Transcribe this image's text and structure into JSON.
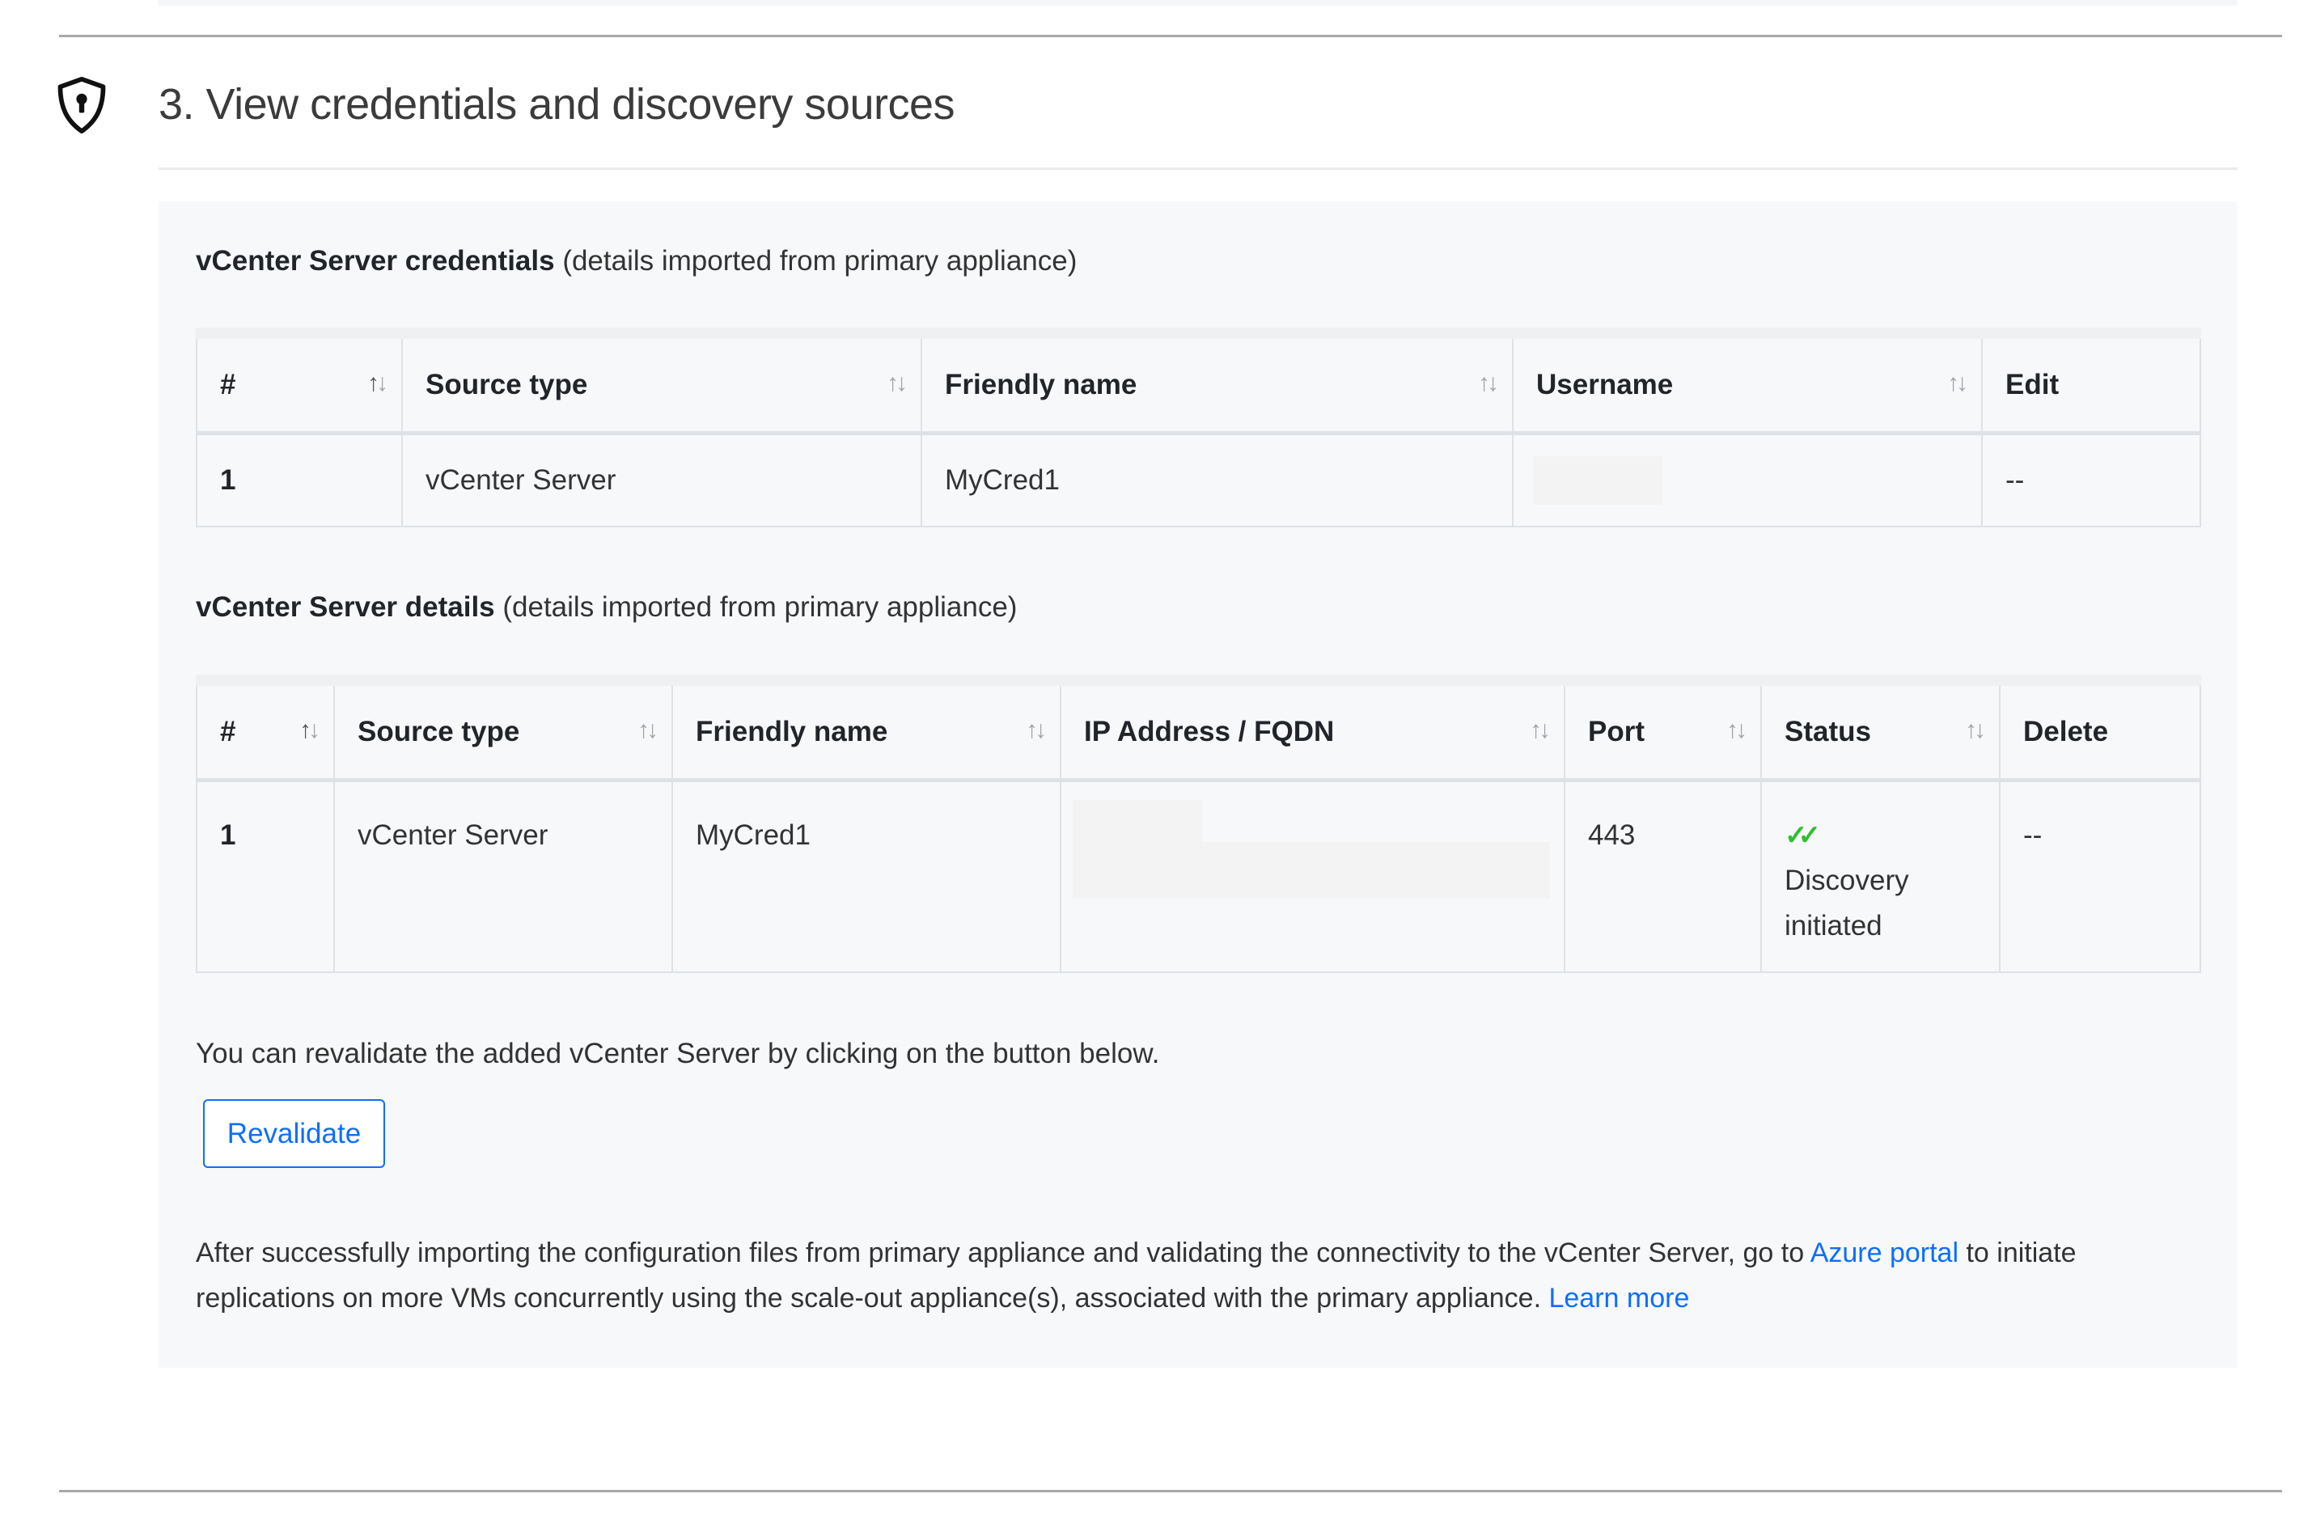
{
  "section": {
    "icon": "shield-keyhole-icon",
    "title": "3. View credentials and discovery sources"
  },
  "credentials": {
    "heading_bold": "vCenter Server credentials",
    "heading_note": "(details imported from primary appliance)",
    "columns": [
      "#",
      "Source type",
      "Friendly name",
      "Username",
      "Edit"
    ],
    "rows": [
      {
        "num": "1",
        "source_type": "vCenter Server",
        "friendly_name": "MyCred1",
        "username": "",
        "edit": "--"
      }
    ]
  },
  "details": {
    "heading_bold": "vCenter Server details",
    "heading_note": "(details imported from primary appliance)",
    "columns": [
      "#",
      "Source type",
      "Friendly name",
      "IP Address / FQDN",
      "Port",
      "Status",
      "Delete"
    ],
    "rows": [
      {
        "num": "1",
        "source_type": "vCenter Server",
        "friendly_name": "MyCred1",
        "ip": "",
        "port": "443",
        "status_icon": "double-check-icon",
        "status": "Discovery initiated",
        "delete": "--"
      }
    ]
  },
  "revalidate": {
    "text": "You can revalidate the added vCenter Server by clicking on the button below.",
    "button": "Revalidate"
  },
  "footer": {
    "text_before": "After successfully importing the configuration files from primary appliance and validating the connectivity to the vCenter Server, go to ",
    "azure_link": "Azure portal",
    "text_middle": " to initiate replications on more VMs concurrently using the scale-out appliance(s), associated with the primary appliance. ",
    "learn_more": "Learn more"
  },
  "colors": {
    "accent": "#0d6efd",
    "success": "#2fbf2f",
    "panel": "#f7f8fa"
  }
}
